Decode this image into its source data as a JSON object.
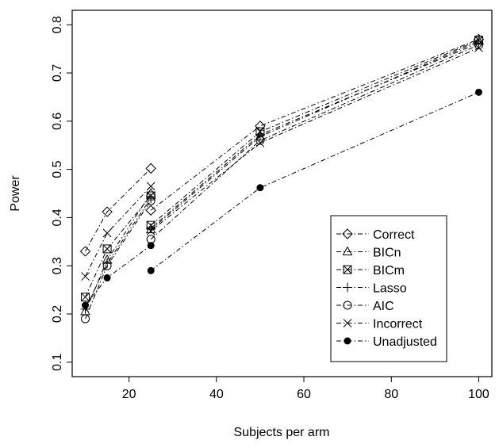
{
  "chart_data": {
    "type": "line",
    "title": "",
    "xlabel": "Subjects per arm",
    "ylabel": "Power",
    "xlim": [
      7,
      103
    ],
    "ylim": [
      0.07,
      0.83
    ],
    "xticks": [
      20,
      40,
      60,
      80,
      100
    ],
    "yticks": [
      0.1,
      0.2,
      0.3,
      0.4,
      0.5,
      0.6,
      0.7,
      0.8
    ],
    "grid": false,
    "legend_position": "bottom-right",
    "line_style": "dash-dot",
    "series": [
      {
        "name": "Correct",
        "marker": "diamond",
        "segments": [
          [
            [
              10,
              0.33
            ],
            [
              15,
              0.412
            ],
            [
              25,
              0.502
            ]
          ],
          [
            [
              25,
              0.415
            ],
            [
              50,
              0.59
            ],
            [
              100,
              0.77
            ]
          ]
        ]
      },
      {
        "name": "BICn",
        "marker": "triangle",
        "segments": [
          [
            [
              10,
              0.205
            ],
            [
              15,
              0.312
            ],
            [
              25,
              0.45
            ]
          ],
          [
            [
              25,
              0.375
            ],
            [
              50,
              0.568
            ],
            [
              100,
              0.766
            ]
          ]
        ]
      },
      {
        "name": "BICm",
        "marker": "boxx",
        "segments": [
          [
            [
              10,
              0.235
            ],
            [
              15,
              0.335
            ],
            [
              25,
              0.445
            ]
          ],
          [
            [
              25,
              0.384
            ],
            [
              50,
              0.578
            ],
            [
              100,
              0.768
            ]
          ]
        ]
      },
      {
        "name": "Lasso",
        "marker": "plus",
        "segments": [
          [
            [
              10,
              0.21
            ],
            [
              15,
              0.305
            ],
            [
              25,
              0.44
            ]
          ],
          [
            [
              25,
              0.378
            ],
            [
              50,
              0.572
            ],
            [
              100,
              0.762
            ]
          ]
        ]
      },
      {
        "name": "AIC",
        "marker": "circle",
        "segments": [
          [
            [
              10,
              0.19
            ],
            [
              15,
              0.3
            ],
            [
              25,
              0.435
            ]
          ],
          [
            [
              25,
              0.355
            ],
            [
              50,
              0.56
            ],
            [
              100,
              0.758
            ]
          ]
        ]
      },
      {
        "name": "Incorrect",
        "marker": "x",
        "segments": [
          [
            [
              10,
              0.278
            ],
            [
              15,
              0.368
            ],
            [
              25,
              0.465
            ]
          ],
          [
            [
              25,
              0.372
            ],
            [
              50,
              0.555
            ],
            [
              100,
              0.752
            ]
          ]
        ]
      },
      {
        "name": "Unadjusted",
        "marker": "dot",
        "segments": [
          [
            [
              10,
              0.218
            ],
            [
              15,
              0.275
            ],
            [
              25,
              0.342
            ]
          ],
          [
            [
              25,
              0.29
            ],
            [
              50,
              0.462
            ],
            [
              100,
              0.66
            ]
          ]
        ]
      }
    ]
  }
}
